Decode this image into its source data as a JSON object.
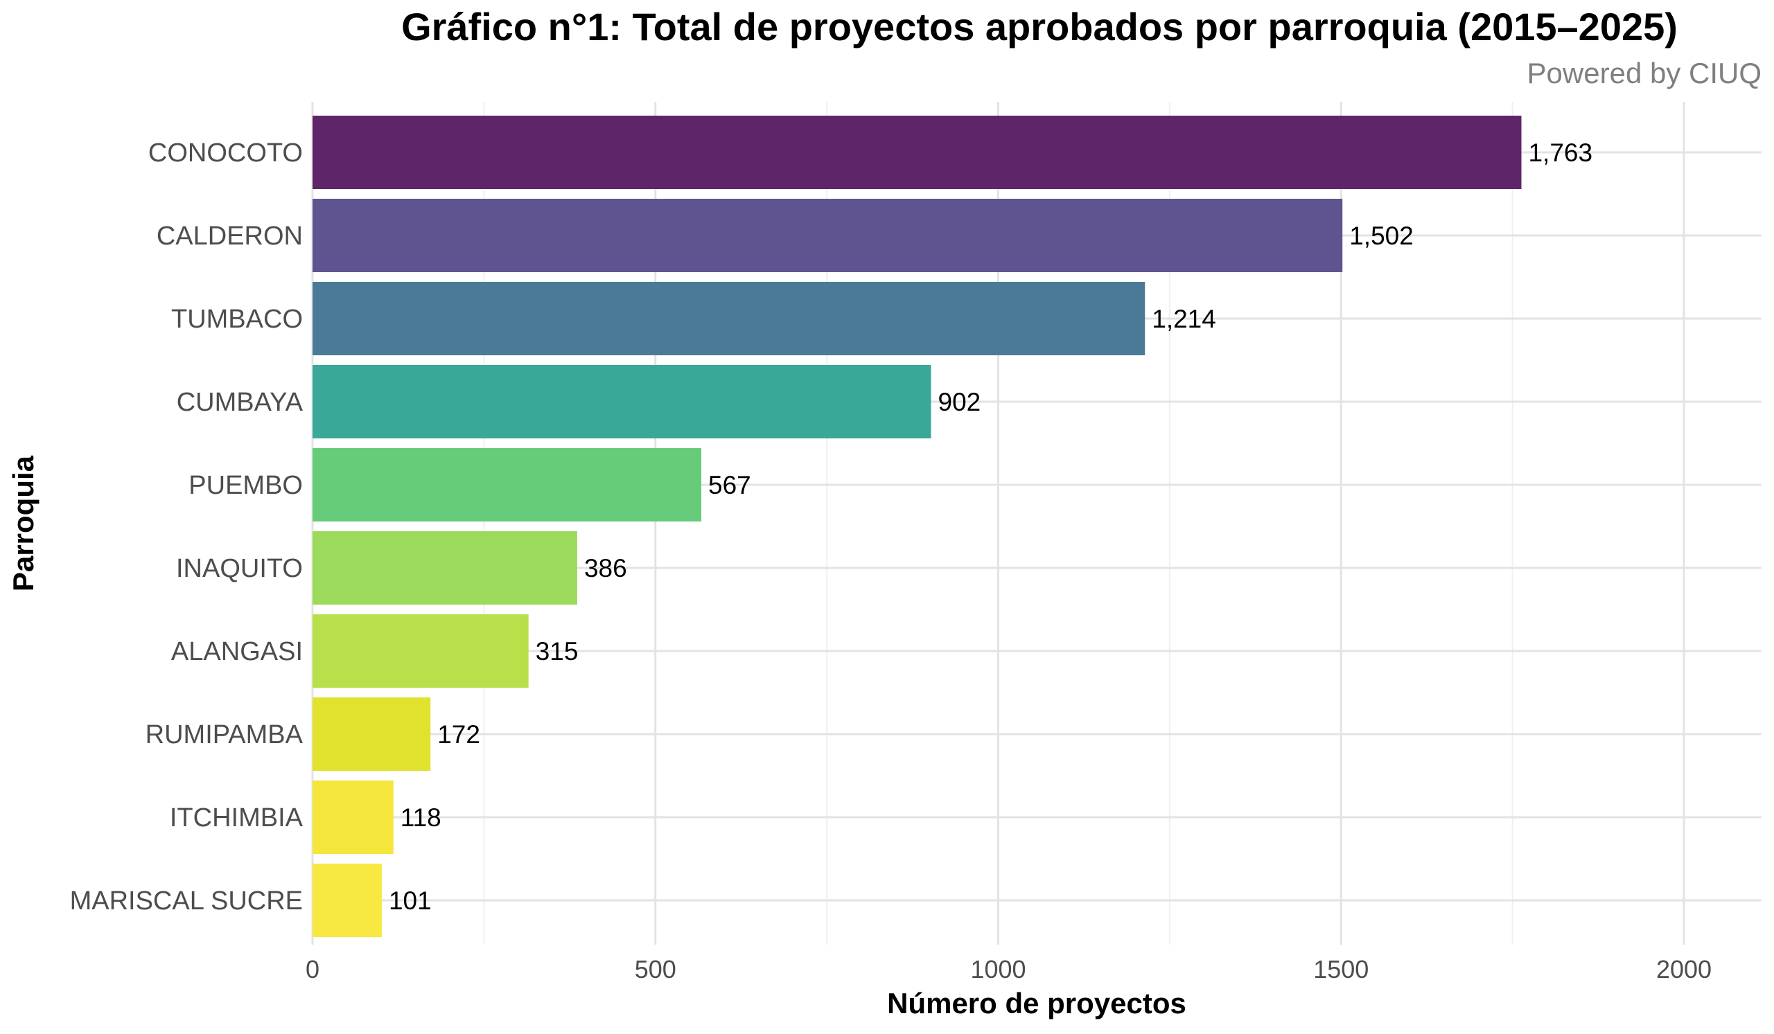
{
  "chart_data": {
    "type": "bar",
    "orientation": "horizontal",
    "title": "Gráfico n°1: Total de proyectos aprobados por parroquia (2015–2025)",
    "subtitle": "Powered by CIUQ",
    "xlabel": "Número de proyectos",
    "ylabel": "Parroquia",
    "xlim": [
      0,
      2100
    ],
    "xticks": [
      0,
      500,
      1000,
      1500,
      2000
    ],
    "xtick_labels": [
      "0",
      "500",
      "1000",
      "1500",
      "2000"
    ],
    "grid": true,
    "legend": "none",
    "categories": [
      "CONOCOTO",
      "CALDERON",
      "TUMBACO",
      "CUMBAYA",
      "PUEMBO",
      "INAQUITO",
      "ALANGASI",
      "RUMIPAMBA",
      "ITCHIMBIA",
      "MARISCAL SUCRE"
    ],
    "values": [
      1763,
      1502,
      1214,
      902,
      567,
      386,
      315,
      172,
      118,
      101
    ],
    "data_labels": [
      "1,763",
      "1,502",
      "1,214",
      "902",
      "567",
      "386",
      "315",
      "172",
      "118",
      "101"
    ],
    "colors": [
      "#5e2668",
      "#5f5490",
      "#4a7a98",
      "#3aa898",
      "#66cc7a",
      "#9cda5c",
      "#b8e04a",
      "#e0e22e",
      "#f5e63c",
      "#f8e842"
    ]
  }
}
